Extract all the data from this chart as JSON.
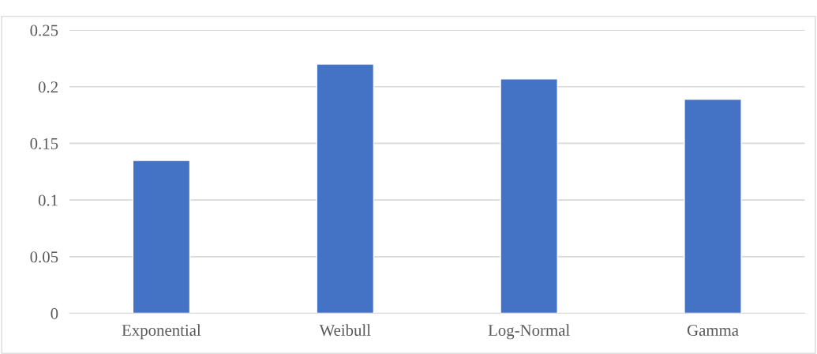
{
  "chart_data": {
    "type": "bar",
    "categories": [
      "Exponential",
      "Weibull",
      "Log-Normal",
      "Gamma"
    ],
    "values": [
      0.135,
      0.22,
      0.207,
      0.189
    ],
    "color": "#4472c4",
    "ylim": [
      0,
      0.25
    ],
    "yticks": [
      {
        "value": 0,
        "label": "0"
      },
      0.05,
      0.1,
      0.15,
      0.2,
      0.25
    ],
    "grid": "y",
    "legend": false
  }
}
